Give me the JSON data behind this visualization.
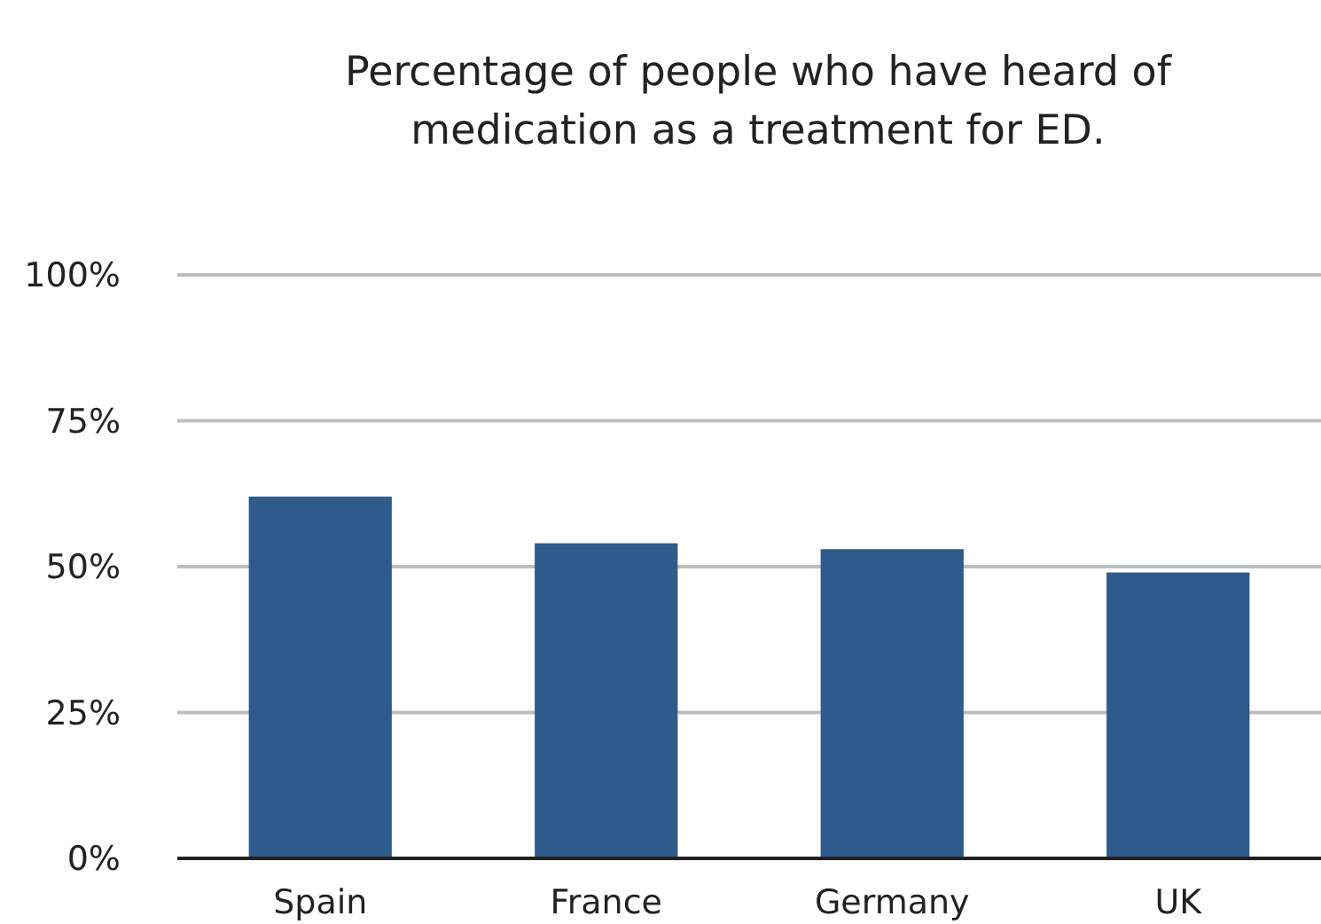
{
  "chart_data": {
    "type": "bar",
    "title": "Percentage of people who have heard of medication as a treatment for ED.",
    "categories": [
      "Spain",
      "France",
      "Germany",
      "UK"
    ],
    "values": [
      62,
      54,
      53,
      49
    ],
    "color": "#2e5a8c",
    "ylim": [
      0,
      100
    ],
    "yticks": [
      {
        "value": 0,
        "label": "0%"
      },
      {
        "value": 25,
        "label": "25%"
      },
      {
        "value": 50,
        "label": "50%"
      },
      {
        "value": 75,
        "label": "75%"
      },
      {
        "value": 100,
        "label": "100%"
      }
    ],
    "grid": "y"
  }
}
